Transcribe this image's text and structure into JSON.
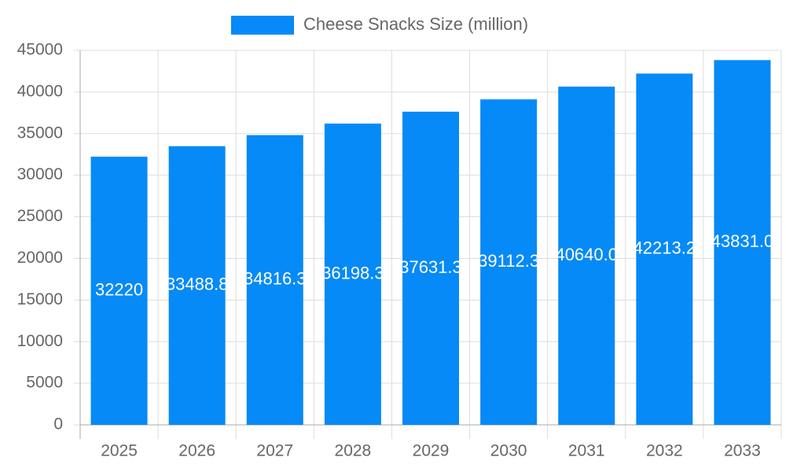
{
  "chart_data": {
    "type": "bar",
    "categories": [
      "2025",
      "2026",
      "2027",
      "2028",
      "2029",
      "2030",
      "2031",
      "2032",
      "2033"
    ],
    "series": [
      {
        "name": "Cheese Snacks Size (million)",
        "color": "#068af7",
        "values": [
          32220,
          33488.8,
          34816.3,
          36198.3,
          37631.3,
          39112.3,
          40640,
          42213.2,
          43831
        ],
        "value_labels": [
          "32220",
          "33488.8",
          "34816.3",
          "36198.3",
          "37631.3",
          "39112.3",
          "40640.0",
          "42213.2",
          "43831.0"
        ]
      }
    ],
    "ylim": [
      0,
      45000
    ],
    "yticks": [
      0,
      5000,
      10000,
      15000,
      20000,
      25000,
      30000,
      35000,
      40000,
      45000
    ],
    "grid": true,
    "legend": "top"
  }
}
